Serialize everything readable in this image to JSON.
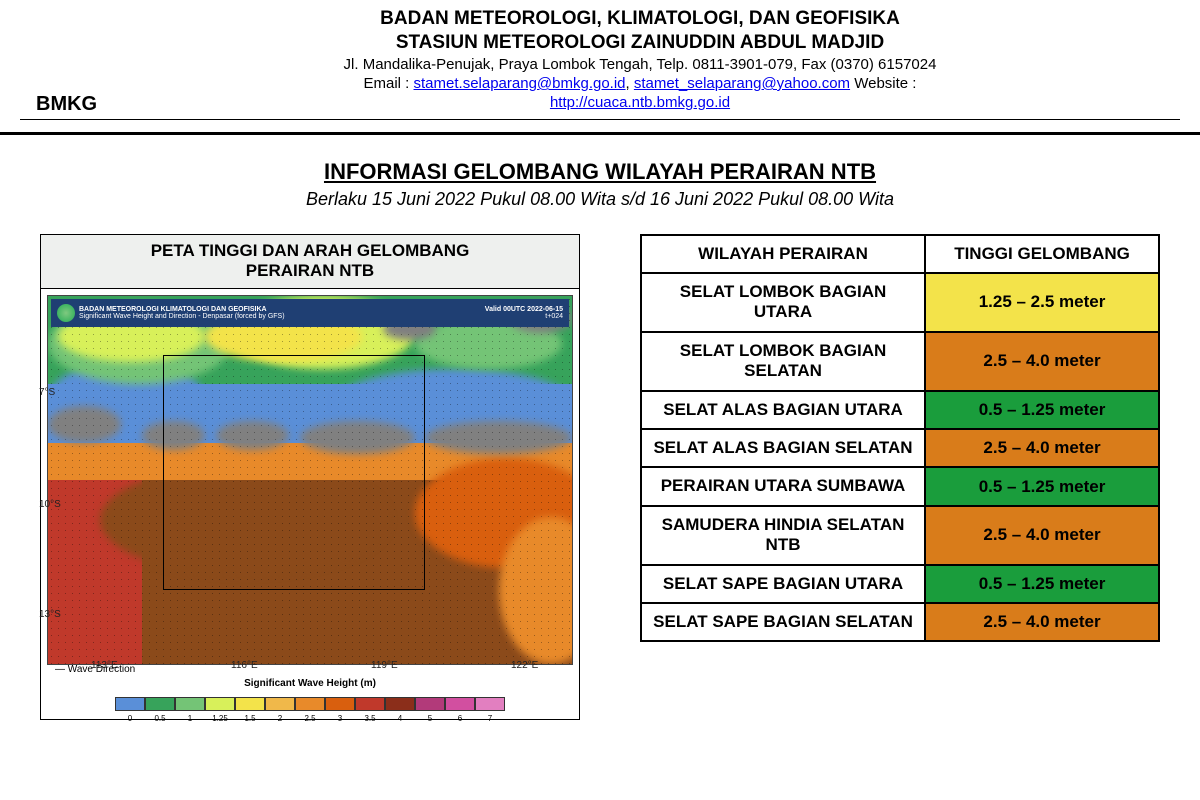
{
  "letterhead": {
    "agency": "BADAN METEOROLOGI, KLIMATOLOGI, DAN GEOFISIKA",
    "station": "STASIUN METEOROLOGI ZAINUDDIN ABDUL MADJID",
    "address": "Jl. Mandalika-Penujak, Praya Lombok Tengah, Telp. 0811-3901-079, Fax (0370) 6157024",
    "email_label": "Email : ",
    "email1": "stamet.selaparang@bmkg.go.id",
    "email_sep": ", ",
    "email2": "stamet_selaparang@yahoo.com",
    "website_label": " Website :",
    "website": "http://cuaca.ntb.bmkg.go.id",
    "bmkg": "BMKG"
  },
  "bulletin": {
    "title": "INFORMASI GELOMBANG WILAYAH PERAIRAN NTB",
    "valid": "Berlaku 15 Juni 2022 Pukul 08.00 Wita s/d 16 Juni 2022 Pukul 08.00 Wita"
  },
  "map": {
    "title_line1": "PETA TINGGI DAN ARAH GELOMBANG",
    "title_line2": "PERAIRAN NTB",
    "sub_agency": "BADAN METEOROLOGI KLIMATOLOGI DAN GEOFISIKA",
    "sub_product": "Significant Wave Height and Direction - Denpasar (forced by GFS)",
    "sub_valid": "Valid 00UTC 2022-06-15",
    "sub_tz": "t+024",
    "lat_ticks": [
      "7°S",
      "10°S",
      "13°S"
    ],
    "lon_ticks": [
      "113°E",
      "116°E",
      "119°E",
      "122°E"
    ],
    "wave_dir_label": "— Wave Direction",
    "scale_title": "Significant Wave Height (m)",
    "scale_ticks": [
      "0",
      "0.5",
      "1",
      "1.25",
      "1.5",
      "2",
      "2.5",
      "3",
      "3.5",
      "4",
      "5",
      "6",
      "7"
    ],
    "scale_colors": [
      "#5a8fd8",
      "#37a35b",
      "#74c476",
      "#d8f05a",
      "#f3e34a",
      "#f0b84a",
      "#e88a2a",
      "#d95f0e",
      "#c0392b",
      "#8b2e1a",
      "#b23a7a",
      "#d24fa0",
      "#e27fc0"
    ],
    "regions": {
      "sea_nw": "#5a8fd8",
      "green_mid": "#37a35b",
      "lightgreen": "#74c476",
      "yellow_lime": "#d8f05a",
      "yellow": "#f3e34a",
      "orange": "#e88a2a",
      "darkorange": "#d95f0e",
      "brown": "#8b4a1a",
      "red": "#c0392b",
      "land": "#808080"
    }
  },
  "table": {
    "header_region": "WILAYAH PERAIRAN",
    "header_height": "TINGGI GELOMBANG",
    "rows": [
      {
        "region": "SELAT LOMBOK BAGIAN UTARA",
        "height": "1.25 – 2.5 meter",
        "color": "#f3e34a"
      },
      {
        "region": "SELAT LOMBOK BAGIAN SELATAN",
        "height": "2.5 – 4.0 meter",
        "color": "#d97c1a"
      },
      {
        "region": "SELAT ALAS BAGIAN UTARA",
        "height": "0.5 – 1.25 meter",
        "color": "#1a9d3c"
      },
      {
        "region": "SELAT ALAS BAGIAN SELATAN",
        "height": "2.5 – 4.0 meter",
        "color": "#d97c1a"
      },
      {
        "region": "PERAIRAN UTARA SUMBAWA",
        "height": "0.5 – 1.25 meter",
        "color": "#1a9d3c"
      },
      {
        "region": "SAMUDERA HINDIA SELATAN NTB",
        "height": "2.5 – 4.0 meter",
        "color": "#d97c1a"
      },
      {
        "region": "SELAT SAPE BAGIAN UTARA",
        "height": "0.5 – 1.25 meter",
        "color": "#1a9d3c"
      },
      {
        "region": "SELAT SAPE BAGIAN SELATAN",
        "height": "2.5 – 4.0 meter",
        "color": "#d97c1a"
      }
    ]
  }
}
